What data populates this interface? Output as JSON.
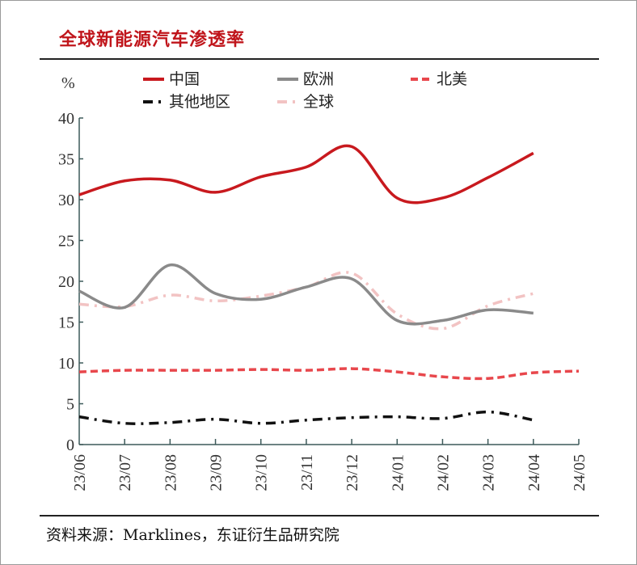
{
  "title": "全球新能源汽车渗透率",
  "source": "资料来源：Marklines，东证衍生品研究院",
  "chart_data": {
    "type": "line",
    "title": "全球新能源汽车渗透率",
    "ylabel": "%",
    "ylim": [
      0,
      40
    ],
    "yticks": [
      0,
      5,
      10,
      15,
      20,
      25,
      30,
      35,
      40
    ],
    "categories": [
      "23/06",
      "23/07",
      "23/08",
      "23/09",
      "23/10",
      "23/11",
      "23/12",
      "24/01",
      "24/02",
      "24/03",
      "24/04",
      "24/05"
    ],
    "legend_position": "top",
    "grid": false,
    "series": [
      {
        "name": "中国",
        "color": "#c8191e",
        "style": "solid",
        "values": [
          30.6,
          32.3,
          32.4,
          30.9,
          32.8,
          34.0,
          36.5,
          30.2,
          30.2,
          32.7,
          35.7,
          null
        ]
      },
      {
        "name": "欧洲",
        "color": "#8a8a8a",
        "style": "solid",
        "values": [
          18.8,
          16.8,
          22.0,
          18.5,
          17.8,
          19.3,
          20.3,
          15.2,
          15.2,
          16.5,
          16.1,
          null
        ]
      },
      {
        "name": "北美",
        "color": "#e8474c",
        "style": "dash",
        "values": [
          8.9,
          9.1,
          9.1,
          9.1,
          9.2,
          9.1,
          9.3,
          8.9,
          8.3,
          8.1,
          8.8,
          9.0
        ]
      },
      {
        "name": "其他地区",
        "color": "#111111",
        "style": "dashdot",
        "values": [
          3.4,
          2.6,
          2.7,
          3.1,
          2.6,
          3.0,
          3.3,
          3.4,
          3.2,
          4.0,
          3.0,
          null
        ]
      },
      {
        "name": "全球",
        "color": "#f2c3c3",
        "style": "dashdot",
        "values": [
          17.2,
          16.9,
          18.3,
          17.6,
          18.2,
          19.3,
          21.0,
          16.0,
          14.2,
          17.0,
          18.5,
          null
        ]
      }
    ]
  }
}
